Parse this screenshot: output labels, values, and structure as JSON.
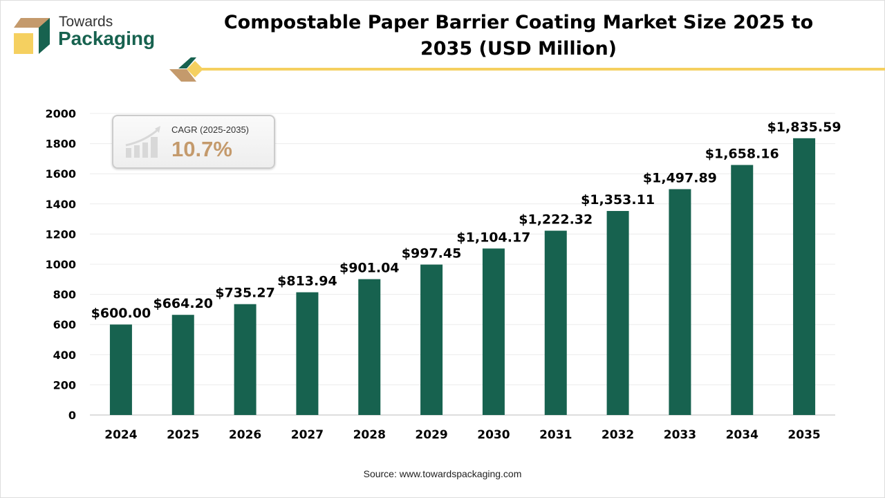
{
  "logo": {
    "line1": "Towards",
    "line2": "Packaging"
  },
  "title": "Compostable Paper Barrier Coating Market Size 2025 to 2035 (USD Million)",
  "cagr": {
    "label": "CAGR (2025-2035)",
    "value": "10.7%"
  },
  "source": "Source: www.towardspackaging.com",
  "colors": {
    "bar": "#17624f",
    "accent_yellow": "#f5d060",
    "accent_tan": "#c49a6c"
  },
  "chart_data": {
    "type": "bar",
    "categories": [
      "2024",
      "2025",
      "2026",
      "2027",
      "2028",
      "2029",
      "2030",
      "2031",
      "2032",
      "2033",
      "2034",
      "2035"
    ],
    "values": [
      600.0,
      664.2,
      735.27,
      813.94,
      901.04,
      997.45,
      1104.17,
      1222.32,
      1353.11,
      1497.89,
      1658.16,
      1835.59
    ],
    "labels": [
      "$600.00",
      "$664.20",
      "$735.27",
      "$813.94",
      "$901.04",
      "$997.45",
      "$1,104.17",
      "$1,222.32",
      "$1,353.11",
      "$1,497.89",
      "$1,658.16",
      "$1,835.59"
    ],
    "yticks": [
      0,
      200,
      400,
      600,
      800,
      1000,
      1200,
      1400,
      1600,
      1800,
      2000
    ],
    "ylim": [
      0,
      2000
    ],
    "grid": true,
    "xlabel": "",
    "ylabel": ""
  }
}
